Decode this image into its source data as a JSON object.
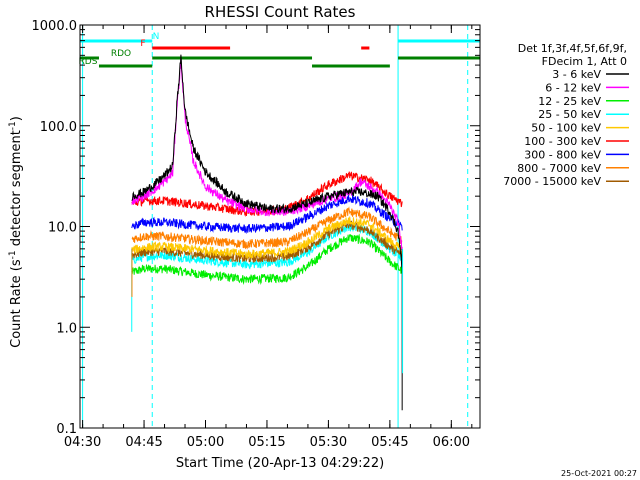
{
  "chart_data": {
    "type": "line",
    "title": "RHESSI Count Rates",
    "xlabel": "Start Time (20-Apr-13 04:29:22)",
    "ylabel": "Count Rate (s⁻¹ detector segment⁻¹)",
    "yscale": "log",
    "ylim": [
      0.1,
      1000.0
    ],
    "xlim": [
      "04:29:22",
      "06:07:00"
    ],
    "x_ticks": [
      "04:30",
      "04:45",
      "05:00",
      "05:15",
      "05:30",
      "05:45",
      "06:00"
    ],
    "y_ticks": [
      "0.1",
      "1.0",
      "10.0",
      "100.0",
      "1000.0"
    ],
    "legend_header": [
      "Det 1f,3f,4f,5f,6f,9f,",
      "FDecim 1, Att 0"
    ],
    "legend_position": "right",
    "series": [
      {
        "name": "3 - 6 keV",
        "color": "#000000",
        "x": [
          "04:42",
          "04:45",
          "04:48",
          "04:50",
          "04:52",
          "04:53",
          "04:54",
          "04:55",
          "04:57",
          "05:00",
          "05:05",
          "05:10",
          "05:15",
          "05:20",
          "05:25",
          "05:30",
          "05:35",
          "05:38",
          "05:42",
          "05:45",
          "05:47",
          "05:48"
        ],
        "y": [
          20,
          22,
          27,
          32,
          40,
          160,
          480,
          140,
          60,
          35,
          22,
          17,
          15,
          15,
          17,
          20,
          22,
          22,
          20,
          14,
          9,
          4
        ]
      },
      {
        "name": "6 - 12 keV",
        "color": "#ff00ff",
        "x": [
          "04:42",
          "04:45",
          "04:48",
          "04:50",
          "04:52",
          "04:53",
          "04:54",
          "04:55",
          "04:57",
          "05:00",
          "05:05",
          "05:10",
          "05:15",
          "05:20",
          "05:25",
          "05:30",
          "05:35",
          "05:38",
          "05:42",
          "05:45",
          "05:47",
          "05:48"
        ],
        "y": [
          18,
          20,
          24,
          28,
          34,
          150,
          440,
          120,
          45,
          25,
          18,
          15,
          14,
          14,
          16,
          19,
          21,
          28,
          22,
          16,
          11,
          6
        ]
      },
      {
        "name": "12 - 25 keV",
        "color": "#00ee00",
        "x": [
          "04:42",
          "04:45",
          "04:50",
          "05:00",
          "05:10",
          "05:20",
          "05:25",
          "05:30",
          "05:35",
          "05:40",
          "05:45",
          "05:48"
        ],
        "y": [
          3.5,
          3.8,
          3.8,
          3.3,
          3.0,
          3.1,
          4.0,
          6.0,
          7.8,
          7.0,
          4.5,
          3.6
        ]
      },
      {
        "name": "25 - 50 keV",
        "color": "#00ffff",
        "x": [
          "04:42",
          "04:45",
          "04:50",
          "05:00",
          "05:10",
          "05:20",
          "05:25",
          "05:30",
          "05:35",
          "05:40",
          "05:45",
          "05:48"
        ],
        "y": [
          4.6,
          5.0,
          5.2,
          4.6,
          4.2,
          4.4,
          5.5,
          8.0,
          10.0,
          9.0,
          6.0,
          4.8
        ]
      },
      {
        "name": "50 - 100 keV",
        "color": "#ffc800",
        "x": [
          "04:42",
          "04:45",
          "04:50",
          "05:00",
          "05:10",
          "05:20",
          "05:25",
          "05:30",
          "05:35",
          "05:40",
          "05:45",
          "05:48"
        ],
        "y": [
          5.8,
          6.2,
          6.3,
          5.8,
          5.3,
          5.6,
          7.0,
          9.5,
          11.5,
          10.5,
          7.2,
          5.8
        ]
      },
      {
        "name": "100 - 300 keV",
        "color": "#ff0000",
        "x": [
          "04:42",
          "04:45",
          "04:50",
          "05:00",
          "05:10",
          "05:20",
          "05:25",
          "05:30",
          "05:35",
          "05:40",
          "05:45",
          "05:48"
        ],
        "y": [
          17,
          18,
          18,
          16,
          14,
          15,
          19,
          26,
          32,
          29,
          20,
          17
        ]
      },
      {
        "name": "300 - 800 keV",
        "color": "#0000ff",
        "x": [
          "04:42",
          "04:45",
          "04:50",
          "05:00",
          "05:10",
          "05:20",
          "05:25",
          "05:30",
          "05:35",
          "05:40",
          "05:45",
          "05:48"
        ],
        "y": [
          10,
          11,
          11,
          10,
          9.5,
          10,
          12.5,
          16,
          19,
          17,
          12,
          10
        ]
      },
      {
        "name": "800 - 7000 keV",
        "color": "#ff8000",
        "x": [
          "04:42",
          "04:45",
          "04:50",
          "05:00",
          "05:10",
          "05:20",
          "05:25",
          "05:30",
          "05:35",
          "05:40",
          "05:45",
          "05:48"
        ],
        "y": [
          7.5,
          8,
          8,
          7.2,
          6.7,
          7,
          8.8,
          11.5,
          14,
          12.5,
          8.8,
          7.2
        ]
      },
      {
        "name": "7000 - 15000 keV",
        "color": "#a05a00",
        "x": [
          "04:42",
          "04:45",
          "04:50",
          "05:00",
          "05:10",
          "05:20",
          "05:25",
          "05:30",
          "05:35",
          "05:40",
          "05:45",
          "05:48"
        ],
        "y": [
          5.2,
          5.6,
          5.7,
          5.2,
          4.8,
          5.0,
          6.2,
          8.5,
          10.5,
          9.2,
          6.3,
          5.2
        ]
      }
    ],
    "flags": [
      {
        "label": "N",
        "color": "#00ffff",
        "intervals": [
          [
            "04:29:22",
            "04:47"
          ],
          [
            "05:47",
            "06:07"
          ]
        ]
      },
      {
        "label": "F",
        "color": "#ff0000",
        "intervals": [
          [
            "04:47",
            "05:06"
          ],
          [
            "05:38",
            "05:40"
          ]
        ]
      },
      {
        "label": "RDO",
        "color": "#008000",
        "intervals": [
          [
            "04:29:22",
            "04:34"
          ],
          [
            "04:47",
            "05:26"
          ],
          [
            "05:47",
            "06:07"
          ]
        ]
      },
      {
        "label": "RDS",
        "color": "#008000",
        "intervals": [
          [
            "04:34",
            "04:47"
          ],
          [
            "05:26",
            "05:45"
          ]
        ]
      }
    ],
    "vertical_lines": [
      {
        "time": "04:47",
        "color": "#00ffff",
        "style": "dashed"
      },
      {
        "time": "05:47",
        "color": "#00ffff",
        "style": "solid"
      },
      {
        "time": "06:04",
        "color": "#00ffff",
        "style": "dashed"
      },
      {
        "time": "04:30",
        "color": "#00ffff",
        "style": "solid"
      }
    ],
    "footer_date": "25-Oct-2021 00:27"
  }
}
